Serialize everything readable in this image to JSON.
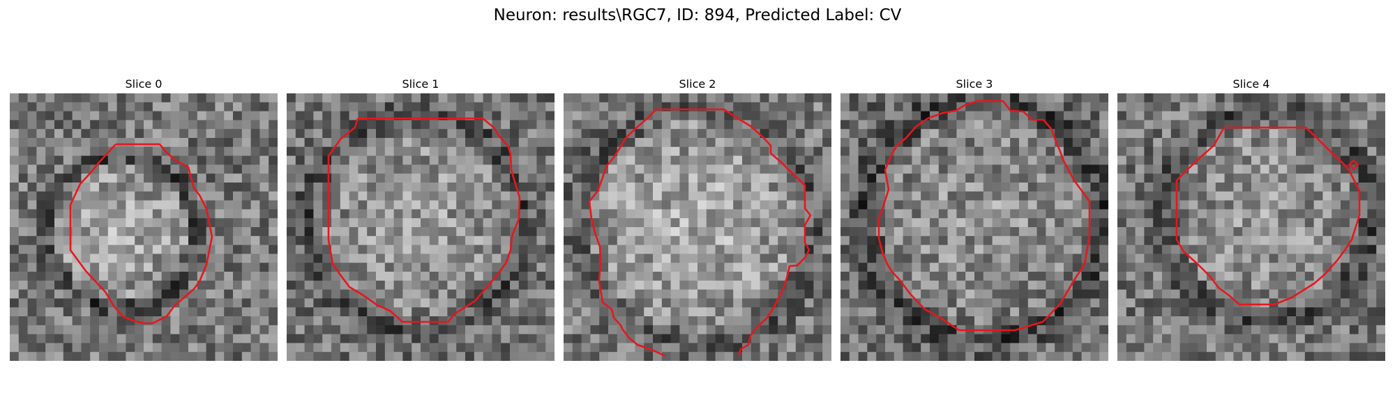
{
  "figure": {
    "title": "Neuron: results\\RGC7, ID: 894, Predicted Label: CV",
    "contour_color": "#e8161d"
  },
  "slices": [
    {
      "title": "Slice 0"
    },
    {
      "title": "Slice 1"
    },
    {
      "title": "Slice 2"
    },
    {
      "title": "Slice 3"
    },
    {
      "title": "Slice 4"
    }
  ]
}
